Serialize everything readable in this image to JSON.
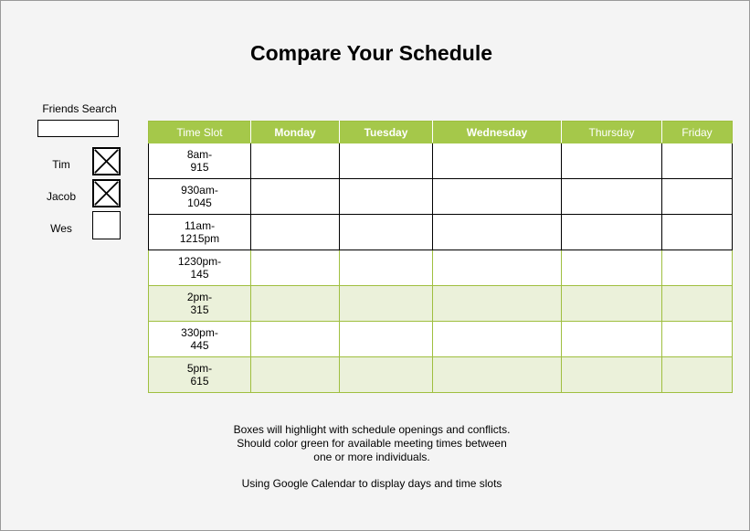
{
  "title": "Compare Your Schedule",
  "friends": {
    "search_label": "Friends Search",
    "search_value": "",
    "list": [
      {
        "name": "Tim",
        "checked": true
      },
      {
        "name": "Jacob",
        "checked": true
      },
      {
        "name": "Wes",
        "checked": false
      }
    ]
  },
  "schedule": {
    "columns": [
      "Time Slot",
      "Monday",
      "Tuesday",
      "Wednesday",
      "Thursday",
      "Friday"
    ],
    "rows": [
      {
        "slot": "8am-\n915",
        "style": "plain"
      },
      {
        "slot": "930am-\n1045",
        "style": "plain"
      },
      {
        "slot": "11am-\n1215pm",
        "style": "plain"
      },
      {
        "slot": "1230pm-\n145",
        "style": "green"
      },
      {
        "slot": "2pm-\n315",
        "style": "shaded"
      },
      {
        "slot": "330pm-\n445",
        "style": "green"
      },
      {
        "slot": "5pm-\n615",
        "style": "shaded"
      }
    ],
    "header_color": "#a5c84a",
    "highlight_color": "#ebf1da"
  },
  "notes": {
    "line1": "Boxes will highlight with schedule openings and conflicts.",
    "line2": "Should color green for available meeting times between",
    "line3": "one or more individuals.",
    "line4": "Using Google Calendar to display days and time slots"
  }
}
